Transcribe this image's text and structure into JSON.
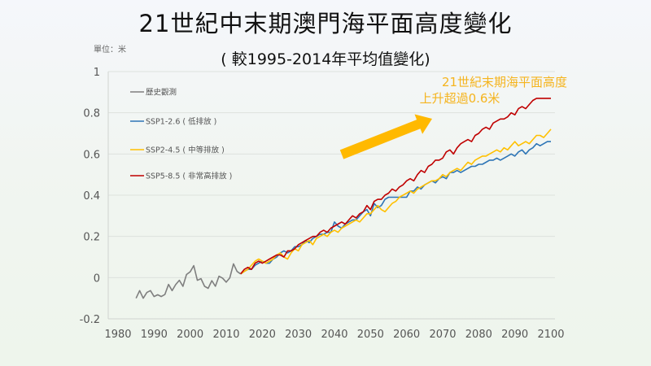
{
  "header": {
    "title": "21世紀中末期澳門海平面高度變化",
    "subtitle": "( 較1995-2014年平均值變化)",
    "unit": "單位：米"
  },
  "chart_data": {
    "type": "line",
    "title": "21世紀中末期澳門海平面高度變化",
    "subtitle": "( 較1995-2014年平均值變化)",
    "xlabel": "",
    "ylabel": "單位：米",
    "xlim": [
      1980,
      2100
    ],
    "ylim": [
      -0.2,
      1
    ],
    "x_ticks": [
      "1980",
      "1990",
      "2000",
      "2010",
      "2020",
      "2030",
      "2040",
      "2050",
      "2060",
      "2070",
      "2080",
      "2090",
      "2100"
    ],
    "y_ticks": [
      "-0.2",
      "0",
      "0.2",
      "0.4",
      "0.6",
      "0.8",
      "1"
    ],
    "y_tick_values": [
      -0.2,
      0,
      0.2,
      0.4,
      0.6,
      0.8,
      1
    ],
    "grid": "horizontal",
    "legend_position": "top-left",
    "annotation": {
      "lines": [
        "21世紀末期海平面高度",
        "上升超過0.6米"
      ],
      "color": "#F5B41E",
      "arrow_color": "#FFB900"
    },
    "series": [
      {
        "name": "歷史觀測",
        "color": "#7F7F7F",
        "start_year": 1985,
        "values": [
          -0.1,
          -0.063,
          -0.1,
          -0.072,
          -0.063,
          -0.092,
          -0.083,
          -0.092,
          -0.082,
          -0.033,
          -0.063,
          -0.034,
          -0.013,
          -0.042,
          0.015,
          0.028,
          0.058,
          -0.013,
          -0.005,
          -0.042,
          -0.052,
          -0.015,
          -0.042,
          0.007,
          -0.003,
          -0.022,
          -0.001,
          0.067,
          0.03,
          0.018
        ]
      },
      {
        "name": "SSP1-2.6 ( 低排放 )",
        "color": "#2E75B6",
        "start_year": 2014,
        "values": [
          0.018,
          0.03,
          0.04,
          0.04,
          0.06,
          0.07,
          0.08,
          0.07,
          0.07,
          0.09,
          0.1,
          0.12,
          0.13,
          0.12,
          0.13,
          0.15,
          0.15,
          0.16,
          0.18,
          0.17,
          0.19,
          0.2,
          0.21,
          0.21,
          0.22,
          0.22,
          0.27,
          0.25,
          0.24,
          0.26,
          0.27,
          0.28,
          0.28,
          0.3,
          0.32,
          0.33,
          0.3,
          0.36,
          0.34,
          0.35,
          0.38,
          0.39,
          0.39,
          0.39,
          0.39,
          0.39,
          0.39,
          0.42,
          0.42,
          0.44,
          0.43,
          0.45,
          0.46,
          0.47,
          0.46,
          0.48,
          0.49,
          0.48,
          0.51,
          0.51,
          0.52,
          0.51,
          0.52,
          0.53,
          0.54,
          0.54,
          0.55,
          0.55,
          0.56,
          0.57,
          0.57,
          0.58,
          0.57,
          0.58,
          0.59,
          0.6,
          0.59,
          0.61,
          0.62,
          0.6,
          0.62,
          0.63,
          0.65,
          0.64,
          0.65,
          0.66,
          0.66
        ]
      },
      {
        "name": "SSP2-4.5 ( 中等排放 )",
        "color": "#FFC000",
        "start_year": 2014,
        "values": [
          0.018,
          0.03,
          0.04,
          0.06,
          0.08,
          0.09,
          0.08,
          0.07,
          0.08,
          0.09,
          0.11,
          0.12,
          0.1,
          0.09,
          0.12,
          0.14,
          0.13,
          0.16,
          0.17,
          0.18,
          0.16,
          0.19,
          0.2,
          0.21,
          0.2,
          0.22,
          0.23,
          0.22,
          0.24,
          0.25,
          0.26,
          0.27,
          0.28,
          0.27,
          0.29,
          0.31,
          0.31,
          0.33,
          0.35,
          0.33,
          0.32,
          0.34,
          0.36,
          0.37,
          0.39,
          0.4,
          0.41,
          0.42,
          0.41,
          0.43,
          0.44,
          0.45,
          0.46,
          0.47,
          0.47,
          0.48,
          0.5,
          0.49,
          0.51,
          0.52,
          0.53,
          0.52,
          0.54,
          0.56,
          0.55,
          0.57,
          0.58,
          0.59,
          0.59,
          0.6,
          0.61,
          0.62,
          0.61,
          0.63,
          0.62,
          0.64,
          0.66,
          0.64,
          0.65,
          0.66,
          0.65,
          0.67,
          0.69,
          0.69,
          0.68,
          0.7,
          0.72
        ]
      },
      {
        "name": "SSP5-8.5 ( 非常高排放 )",
        "color": "#C00000",
        "start_year": 2014,
        "values": [
          0.018,
          0.04,
          0.05,
          0.04,
          0.07,
          0.08,
          0.07,
          0.08,
          0.09,
          0.1,
          0.11,
          0.11,
          0.1,
          0.13,
          0.13,
          0.14,
          0.16,
          0.17,
          0.18,
          0.19,
          0.2,
          0.2,
          0.22,
          0.23,
          0.22,
          0.24,
          0.25,
          0.26,
          0.27,
          0.26,
          0.28,
          0.3,
          0.29,
          0.31,
          0.32,
          0.35,
          0.33,
          0.37,
          0.38,
          0.38,
          0.4,
          0.41,
          0.43,
          0.42,
          0.44,
          0.45,
          0.47,
          0.48,
          0.47,
          0.5,
          0.52,
          0.51,
          0.54,
          0.55,
          0.57,
          0.57,
          0.58,
          0.61,
          0.62,
          0.6,
          0.63,
          0.65,
          0.66,
          0.67,
          0.66,
          0.69,
          0.7,
          0.72,
          0.73,
          0.72,
          0.75,
          0.76,
          0.77,
          0.77,
          0.78,
          0.8,
          0.79,
          0.82,
          0.83,
          0.82,
          0.84,
          0.86,
          0.87,
          0.87,
          0.87,
          0.87,
          0.87
        ]
      }
    ]
  }
}
